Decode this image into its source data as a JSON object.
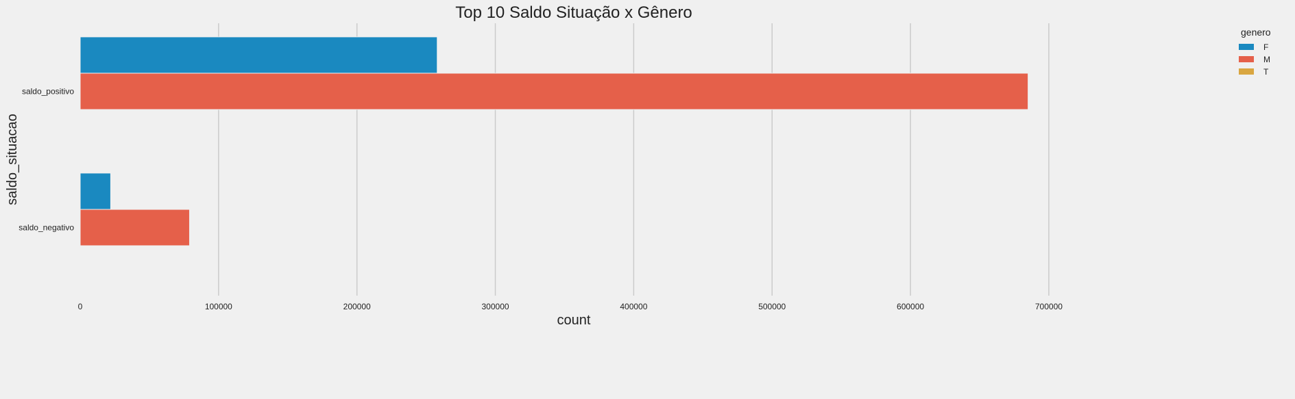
{
  "chart_data": {
    "type": "bar",
    "orientation": "horizontal",
    "title": "Top 10 Saldo Situação x Gênero",
    "xlabel": "count",
    "ylabel": "saldo_situacao",
    "categories": [
      "saldo_positivo",
      "saldo_negativo"
    ],
    "series": [
      {
        "name": "F",
        "color": "#1a89c0",
        "values": [
          258000,
          22000
        ]
      },
      {
        "name": "M",
        "color": "#e5604a",
        "values": [
          685000,
          79000
        ]
      },
      {
        "name": "T",
        "color": "#d9a640",
        "values": [
          0,
          0
        ]
      }
    ],
    "xlim": [
      0,
      705000
    ],
    "xticks": [
      0,
      100000,
      200000,
      300000,
      400000,
      500000,
      600000,
      700000
    ],
    "grid": "vertical",
    "legend": {
      "title": "genero",
      "placement": "top-right"
    }
  }
}
